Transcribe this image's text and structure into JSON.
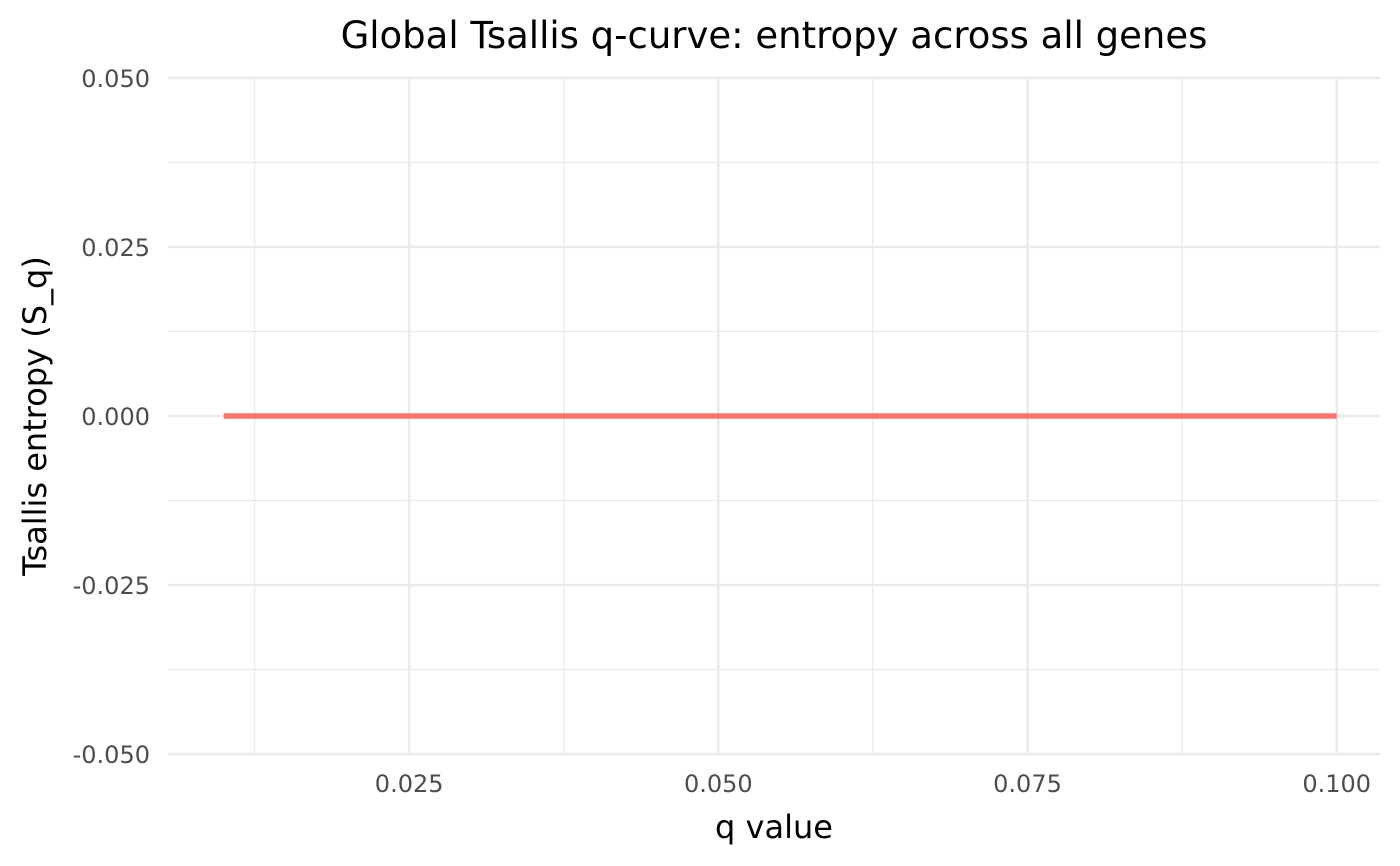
{
  "chart_data": {
    "type": "line",
    "title": "Global Tsallis q-curve: entropy across all genes",
    "xlabel": "q value",
    "ylabel": "Tsallis entropy (S_q)",
    "xlim": [
      0.0055,
      0.1035
    ],
    "ylim": [
      -0.05,
      0.05
    ],
    "x_ticks": [
      0.025,
      0.05,
      0.075,
      0.1
    ],
    "x_tick_labels": [
      "0.025",
      "0.050",
      "0.075",
      "0.100"
    ],
    "x_minor_ticks": [
      0.0125,
      0.0375,
      0.0625,
      0.0875
    ],
    "y_ticks": [
      0.05,
      0.025,
      0.0,
      -0.025,
      -0.05
    ],
    "y_tick_labels": [
      "0.050",
      "0.025",
      "0.000",
      "-0.025",
      "-0.050"
    ],
    "y_minor_ticks": [
      0.0375,
      0.0125,
      -0.0125,
      -0.0375
    ],
    "grid": true,
    "legend": "none",
    "series": [
      {
        "color": "#f8766d",
        "x": [
          0.01,
          0.02,
          0.03,
          0.04,
          0.05,
          0.06,
          0.07,
          0.08,
          0.09,
          0.1
        ],
        "y": [
          0,
          0,
          0,
          0,
          0,
          0,
          0,
          0,
          0,
          0
        ]
      }
    ]
  }
}
